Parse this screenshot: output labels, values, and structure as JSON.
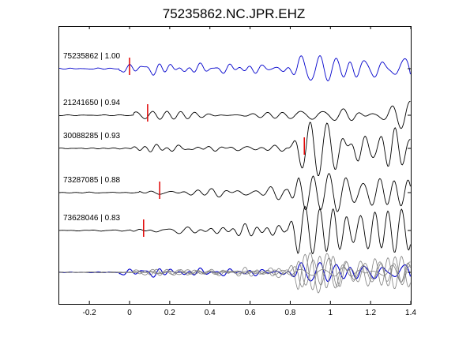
{
  "chart_data": {
    "type": "line",
    "title": "75235862.NC.JPR.EHZ",
    "xlim": [
      -0.35,
      1.4
    ],
    "xticks": [
      "-0.2",
      "0",
      "0.2",
      "0.4",
      "0.6",
      "0.8",
      "1",
      "1.2",
      "1.4"
    ],
    "xtick_values": [
      -0.2,
      0,
      0.2,
      0.4,
      0.6,
      0.8,
      1.0,
      1.2,
      1.4
    ],
    "grid": false,
    "colors": {
      "reference": "#0000cc",
      "trace": "#000000",
      "pick": "#e00000",
      "stack": "#808080"
    },
    "series": [
      {
        "name": "75235862 | 1.00",
        "color": "#0000cc",
        "pick": 0.0,
        "amp": 1.0,
        "onset": -0.05,
        "seed": 1
      },
      {
        "name": "21241650 | 0.94",
        "color": "#000000",
        "pick": 0.09,
        "amp": 1.05,
        "onset": 0.02,
        "seed": 2
      },
      {
        "name": "30088285 | 0.93",
        "color": "#000000",
        "pick": 0.87,
        "amp": 1.0,
        "onset": 0.0,
        "seed": 3
      },
      {
        "name": "73287085 | 0.88",
        "color": "#000000",
        "pick": 0.15,
        "amp": 1.1,
        "onset": 0.05,
        "seed": 4
      },
      {
        "name": "73628046 | 0.83",
        "color": "#000000",
        "pick": 0.07,
        "amp": 1.15,
        "onset": 0.0,
        "seed": 5
      }
    ]
  }
}
